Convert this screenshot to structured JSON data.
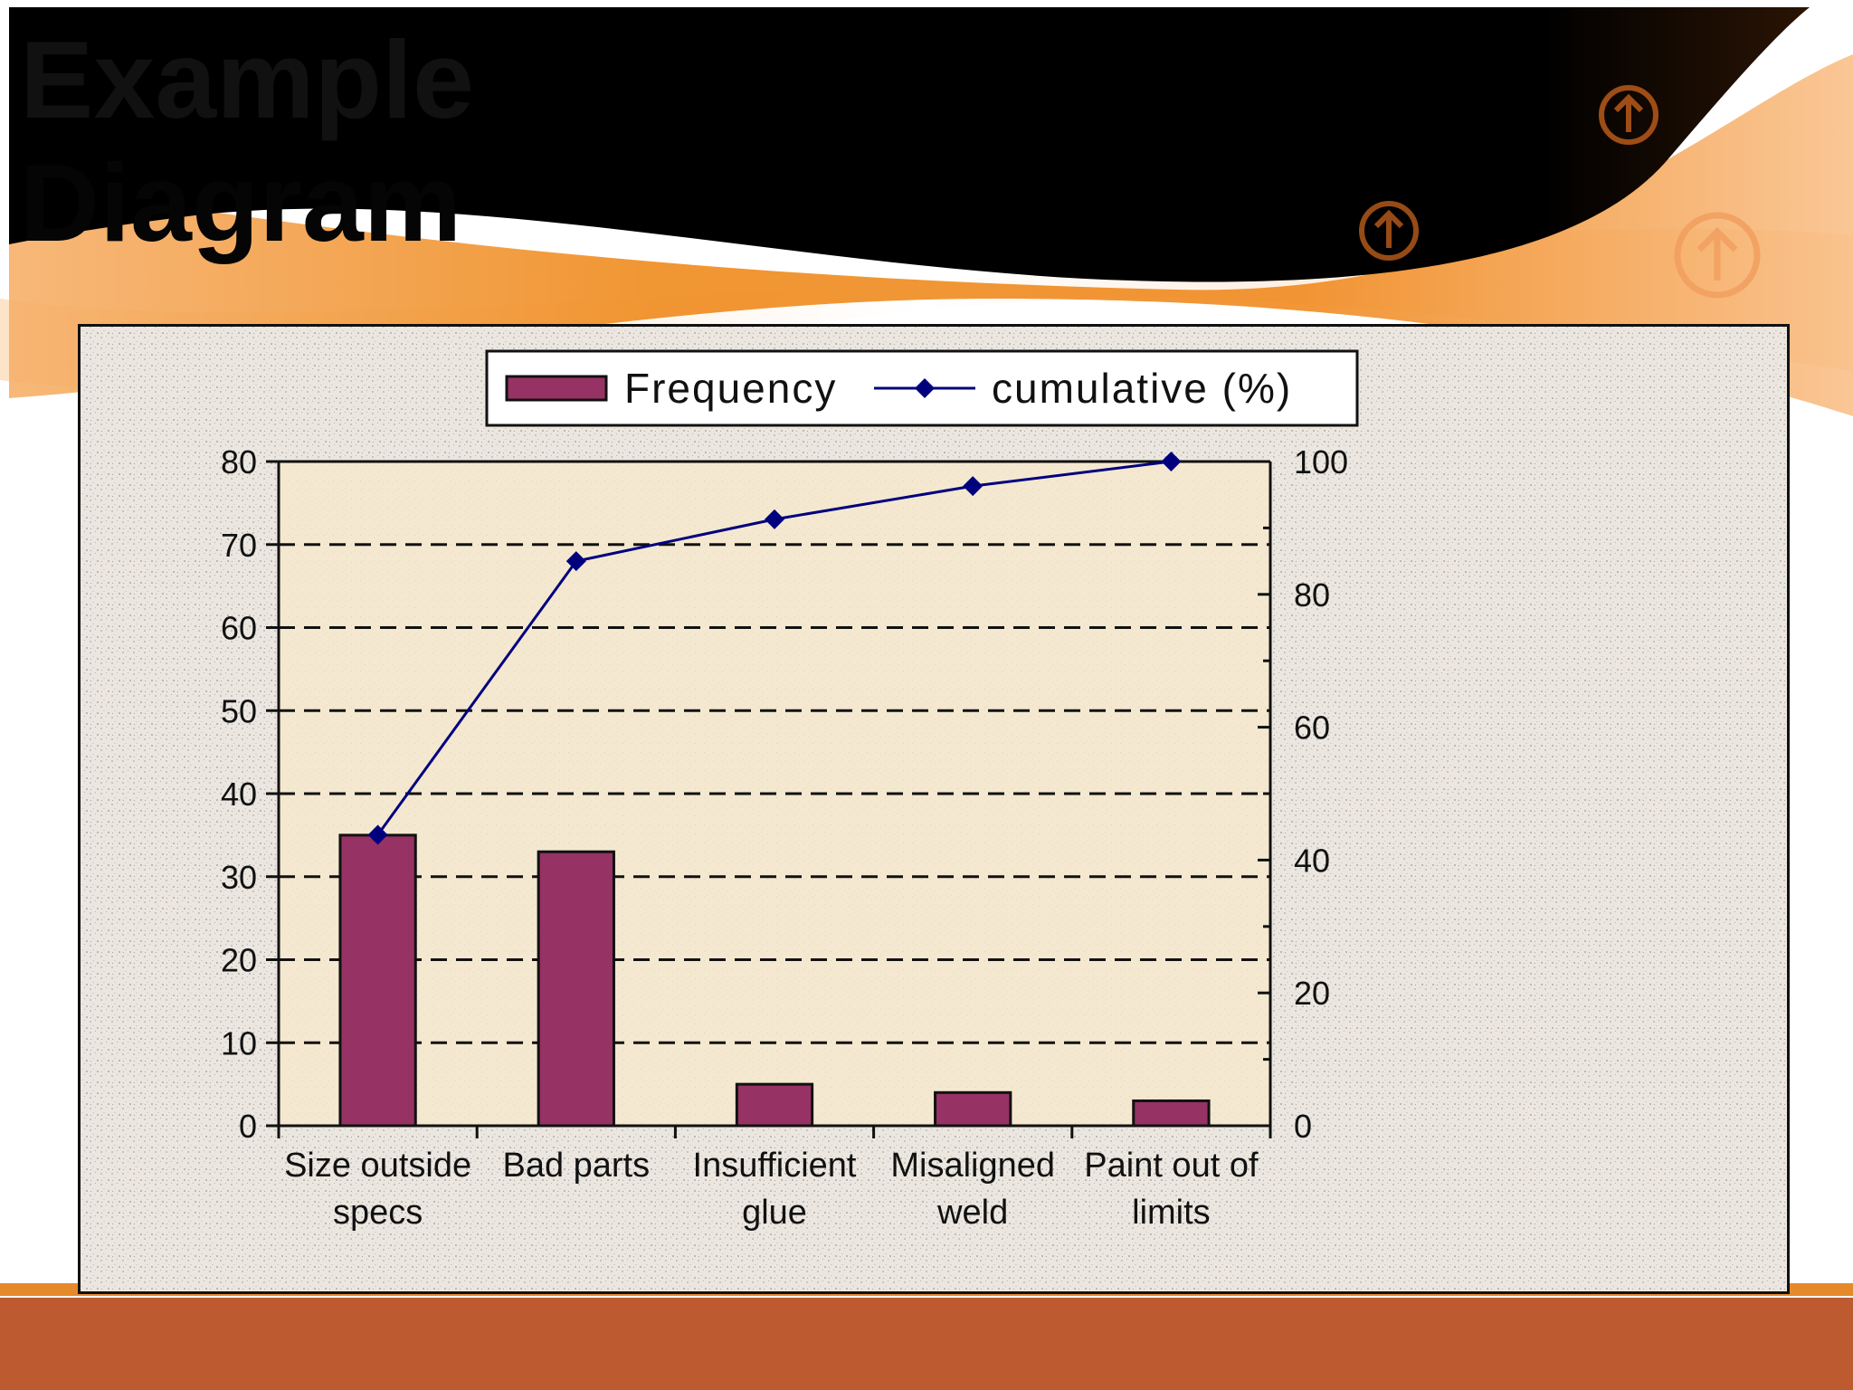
{
  "slide": {
    "title_line1": "Example",
    "title_line2": "Diagram"
  },
  "colors": {
    "bar_fill": "#963264",
    "line_color": "#00007f",
    "footer_bar": "#bd5a2f",
    "accent_orange": "#e58a2a",
    "plot_background": "#f4e9d2"
  },
  "icons": [
    "up-arrow-circle-icon",
    "up-arrow-circle-icon",
    "up-arrow-circle-icon"
  ],
  "chart_data": {
    "type": "bar",
    "title": "",
    "xlabel": "",
    "ylabel": "",
    "y2label": "",
    "categories": [
      [
        "Size outside",
        "specs"
      ],
      [
        "Bad parts"
      ],
      [
        "Insufficient",
        "glue"
      ],
      [
        "Misaligned",
        "weld"
      ],
      [
        "Paint out of",
        "limits"
      ]
    ],
    "series": [
      {
        "name": "Frequency",
        "type": "bar",
        "axis": "left",
        "values": [
          35,
          33,
          5,
          4,
          3
        ]
      },
      {
        "name": "cumulative (%)",
        "type": "line",
        "axis": "right",
        "marker": "diamond",
        "values": [
          43.8,
          85.0,
          91.3,
          96.3,
          100
        ]
      }
    ],
    "ylim": [
      0,
      80
    ],
    "yticks": [
      0,
      10,
      20,
      30,
      40,
      50,
      60,
      70,
      80
    ],
    "y2lim": [
      0,
      100
    ],
    "y2ticks": [
      0,
      20,
      40,
      60,
      80,
      100
    ],
    "grid": "horizontal-dashed",
    "legend_position": "top-center"
  }
}
